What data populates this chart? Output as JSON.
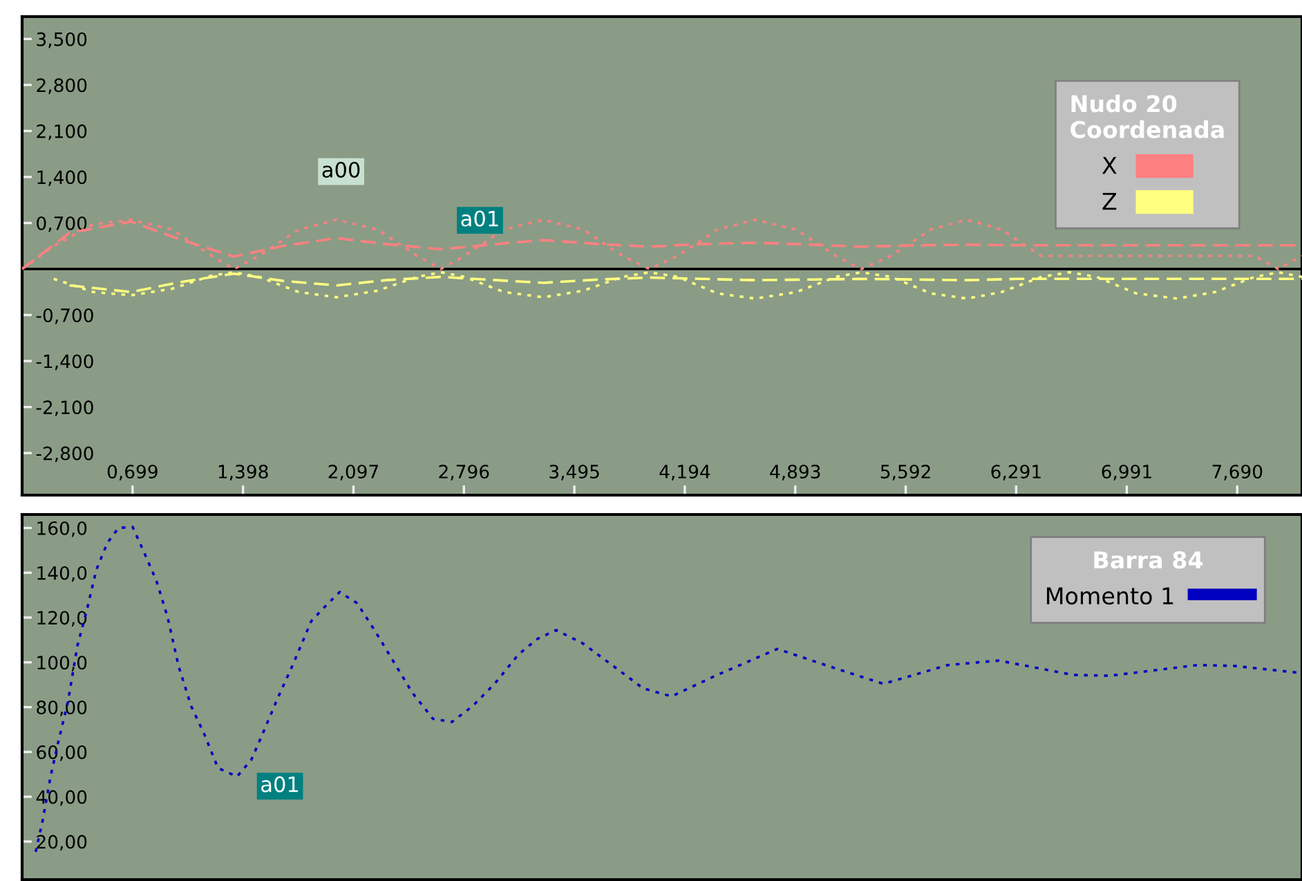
{
  "chart_data": [
    {
      "type": "line",
      "legend_title": "Nudo 20\nCoordenada",
      "legend": "top right",
      "xlim": [
        0,
        8.1
      ],
      "ylim": [
        -3.44,
        3.84
      ],
      "xticks": [
        {
          "value": 0.699,
          "label": "0,699"
        },
        {
          "value": 1.398,
          "label": "1,398"
        },
        {
          "value": 2.097,
          "label": "2,097"
        },
        {
          "value": 2.796,
          "label": "2,796"
        },
        {
          "value": 3.495,
          "label": "3,495"
        },
        {
          "value": 4.194,
          "label": "4,194"
        },
        {
          "value": 4.893,
          "label": "4,893"
        },
        {
          "value": 5.592,
          "label": "5,592"
        },
        {
          "value": 6.291,
          "label": "6,291"
        },
        {
          "value": 6.991,
          "label": "6,991"
        },
        {
          "value": 7.69,
          "label": "7,690"
        }
      ],
      "yticks": [
        {
          "value": 3.5,
          "label": "3,500"
        },
        {
          "value": 2.8,
          "label": "2,800"
        },
        {
          "value": 2.1,
          "label": "2,100"
        },
        {
          "value": 1.4,
          "label": "1,400"
        },
        {
          "value": 0.7,
          "label": "0,700"
        },
        {
          "value": -0.7,
          "label": "-0,700"
        },
        {
          "value": -1.4,
          "label": "-1,400"
        },
        {
          "value": -2.1,
          "label": "-2,100"
        },
        {
          "value": -2.8,
          "label": "-2,800"
        }
      ],
      "ref_lines": [
        {
          "axis": "y",
          "value": 0,
          "color": "#000000",
          "line_style": "solid"
        }
      ],
      "annotations": [
        {
          "text": "a00",
          "x": 1.99,
          "y": 0.75
        },
        {
          "text": "a01",
          "x": 2.65,
          "y": 0.3
        }
      ],
      "series": [
        {
          "name": "X",
          "color": "#ff8080",
          "line_style": "dotted",
          "x": [
            0,
            0.2,
            0.45,
            0.69,
            0.95,
            1.2,
            1.34,
            1.5,
            1.75,
            1.99,
            2.25,
            2.5,
            2.65,
            2.8,
            3.05,
            3.3,
            3.55,
            3.8,
            3.97,
            4.15,
            4.4,
            4.64,
            4.9,
            5.15,
            5.31,
            5.5,
            5.75,
            5.98,
            6.2,
            6.45,
            7.8,
            7.95,
            8.1
          ],
          "values": [
            0,
            0.35,
            0.68,
            0.75,
            0.6,
            0.2,
            0,
            0.2,
            0.6,
            0.75,
            0.6,
            0.2,
            0,
            0.2,
            0.6,
            0.75,
            0.6,
            0.2,
            0,
            0.2,
            0.6,
            0.75,
            0.6,
            0.2,
            0,
            0.2,
            0.6,
            0.75,
            0.6,
            0.2,
            0.2,
            0,
            0.2
          ]
        },
        {
          "color": "#ff8080",
          "line_style": "dashed",
          "x": [
            0,
            0.3,
            0.69,
            1.0,
            1.34,
            1.65,
            1.99,
            2.3,
            2.65,
            3.0,
            3.3,
            3.65,
            3.97,
            4.3,
            4.64,
            5.0,
            5.31,
            5.65,
            5.98,
            6.3,
            7.8,
            8.1
          ],
          "values": [
            0,
            0.55,
            0.72,
            0.45,
            0.19,
            0.35,
            0.47,
            0.38,
            0.3,
            0.38,
            0.44,
            0.38,
            0.34,
            0.38,
            0.4,
            0.37,
            0.34,
            0.36,
            0.37,
            0.36,
            0.36,
            0.36
          ]
        },
        {
          "name": "Z",
          "color": "#ffff80",
          "line_style": "dotted",
          "x": [
            0.2,
            0.45,
            0.69,
            0.95,
            1.2,
            1.34,
            1.5,
            1.75,
            1.99,
            2.25,
            2.5,
            2.65,
            2.8,
            3.05,
            3.3,
            3.55,
            3.8,
            3.97,
            4.15,
            4.4,
            4.64,
            4.9,
            5.15,
            5.31,
            5.5,
            5.75,
            5.98,
            6.2,
            6.45,
            6.63,
            6.8,
            7.05,
            7.31,
            7.55,
            7.8,
            7.95,
            8.1
          ],
          "values": [
            -0.15,
            -0.35,
            -0.4,
            -0.3,
            -0.1,
            -0.05,
            -0.12,
            -0.35,
            -0.43,
            -0.33,
            -0.12,
            -0.05,
            -0.12,
            -0.35,
            -0.43,
            -0.33,
            -0.12,
            -0.05,
            -0.12,
            -0.37,
            -0.45,
            -0.35,
            -0.12,
            -0.05,
            -0.12,
            -0.37,
            -0.45,
            -0.35,
            -0.12,
            -0.05,
            -0.12,
            -0.37,
            -0.45,
            -0.35,
            -0.12,
            -0.05,
            -0.12
          ]
        },
        {
          "color": "#ffff80",
          "line_style": "dashed",
          "x": [
            0.3,
            0.69,
            1.0,
            1.34,
            1.65,
            1.99,
            2.3,
            2.65,
            3.0,
            3.3,
            3.65,
            3.97,
            4.3,
            4.64,
            5.0,
            5.31,
            5.65,
            5.98,
            6.3,
            7.8,
            8.1
          ],
          "values": [
            -0.25,
            -0.35,
            -0.2,
            -0.07,
            -0.18,
            -0.25,
            -0.17,
            -0.12,
            -0.17,
            -0.21,
            -0.16,
            -0.13,
            -0.15,
            -0.17,
            -0.16,
            -0.15,
            -0.16,
            -0.17,
            -0.15,
            -0.15,
            -0.15
          ]
        }
      ]
    },
    {
      "type": "line",
      "legend_title": "Barra 84",
      "legend": "top right",
      "tick_labels": "y",
      "xlim": [
        0,
        8.1
      ],
      "ylim": [
        3,
        166
      ],
      "yticks": [
        {
          "value": 160,
          "label": "160,0"
        },
        {
          "value": 140,
          "label": "140,0"
        },
        {
          "value": 120,
          "label": "120,0"
        },
        {
          "value": 100,
          "label": "100,0"
        },
        {
          "value": 80,
          "label": "80,00"
        },
        {
          "value": 60,
          "label": "60,00"
        },
        {
          "value": 40,
          "label": "40,00"
        },
        {
          "value": 20,
          "label": "20,00"
        }
      ],
      "annotations": [
        {
          "text": "a01",
          "x": 1.36,
          "y": 49
        }
      ],
      "series": [
        {
          "name": "Momento 1",
          "color": "#0000c0",
          "line_style": "dotted",
          "x": [
            0.086,
            0.13,
            0.18,
            0.23,
            0.29,
            0.35,
            0.41,
            0.47,
            0.54,
            0.61,
            0.7,
            0.77,
            0.85,
            0.92,
            0.99,
            1.07,
            1.15,
            1.24,
            1.36,
            1.45,
            1.53,
            1.62,
            1.71,
            1.83,
            1.91,
            2.01,
            2.12,
            2.23,
            2.35,
            2.47,
            2.6,
            2.72,
            2.85,
            2.99,
            3.14,
            3.26,
            3.38,
            3.55,
            3.76,
            3.93,
            4.11,
            4.4,
            4.78,
            5.1,
            5.45,
            5.86,
            6.18,
            6.65,
            6.88,
            7.44,
            7.67,
            8.1
          ],
          "values": [
            15.4,
            29.4,
            49,
            64.8,
            82.4,
            107.4,
            123.4,
            141.4,
            153.4,
            160,
            160.4,
            149.4,
            136.4,
            120.4,
            98.4,
            80.4,
            68.4,
            52.8,
            49,
            56.4,
            69.4,
            84.4,
            98.4,
            118.4,
            124.4,
            131.4,
            126.4,
            114.4,
            100.4,
            86.4,
            74.8,
            73.4,
            80.4,
            90.4,
            103.4,
            110.4,
            114.4,
            108.4,
            97.4,
            88.4,
            84.8,
            94.4,
            106,
            98.4,
            90.4,
            98.8,
            100.8,
            94.4,
            94,
            98.8,
            98.4,
            95.2
          ]
        }
      ]
    }
  ]
}
